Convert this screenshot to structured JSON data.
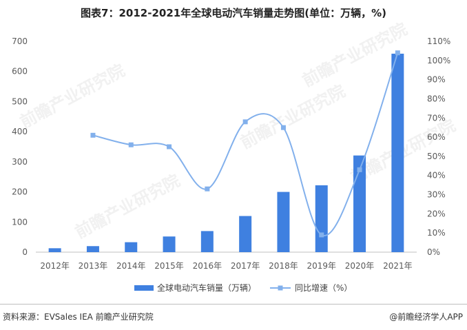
{
  "title": "图表7：2012-2021年全球电动汽车销量走势图(单位：万辆，%)",
  "watermark": "前瞻产业研究院",
  "source": "资料来源：EVSales IEA 前瞻产业研究院",
  "brand": "@前瞻经济学人APP",
  "colors": {
    "bar": "#3f80e0",
    "line": "#82b0ec",
    "marker": "#82b0ec"
  },
  "chart_data": {
    "type": "bar+line",
    "categories": [
      "2012年",
      "2013年",
      "2014年",
      "2015年",
      "2016年",
      "2017年",
      "2018年",
      "2019年",
      "2020年",
      "2021年"
    ],
    "series": [
      {
        "name": "全球电动汽车销量（万辆）",
        "type": "bar",
        "axis": "left",
        "values": [
          13,
          20,
          33,
          52,
          70,
          120,
          200,
          222,
          321,
          659
        ]
      },
      {
        "name": "同比增速（%）",
        "type": "line",
        "axis": "right",
        "smooth": true,
        "values": [
          null,
          61,
          56,
          55,
          33,
          68,
          65,
          9,
          43,
          104
        ]
      }
    ],
    "y_left": {
      "min": 0,
      "max": 700,
      "step": 100,
      "ticks": [
        "0",
        "100",
        "200",
        "300",
        "400",
        "500",
        "600",
        "700"
      ]
    },
    "y_right": {
      "min": 0,
      "max": 110,
      "step": 10,
      "ticks": [
        "0%",
        "10%",
        "20%",
        "30%",
        "40%",
        "50%",
        "60%",
        "70%",
        "80%",
        "90%",
        "100%",
        "110%"
      ]
    },
    "grid": false,
    "legend_position": "bottom"
  }
}
